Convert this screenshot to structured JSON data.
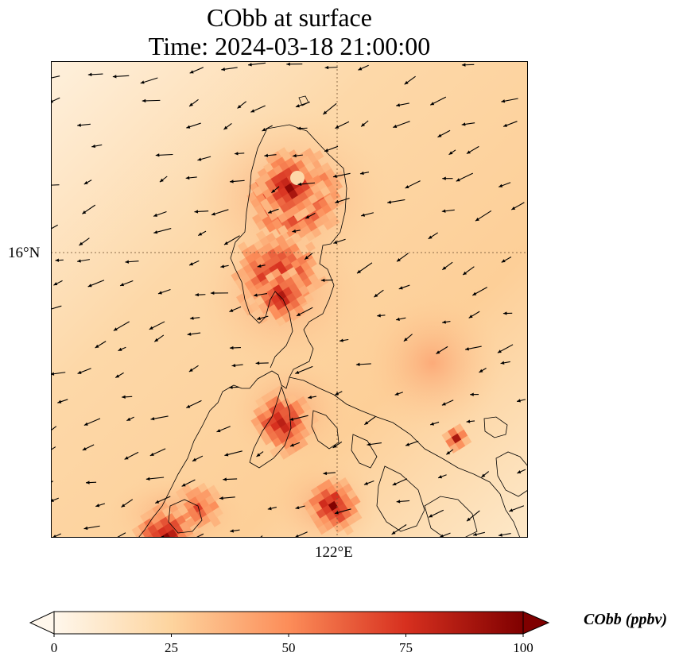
{
  "title": {
    "line1": "CObb at surface",
    "line2": "Time: 2024-03-18 21:00:00"
  },
  "map": {
    "latitude_label": "16°N",
    "longitude_label": "122°E",
    "features": [
      "co-concentration-field",
      "wind-vectors",
      "coastlines",
      "gridlines"
    ]
  },
  "colorbar": {
    "title": "CObb (ppbv)",
    "ticks": [
      "0",
      "25",
      "50",
      "75",
      "100"
    ],
    "tick_values": [
      0,
      25,
      50,
      75,
      100
    ],
    "range": [
      0,
      100
    ],
    "colormap": "OrRd",
    "colors": [
      "#fff7ec",
      "#fdd49e",
      "#fc8d59",
      "#d7301f",
      "#7f0000"
    ]
  }
}
